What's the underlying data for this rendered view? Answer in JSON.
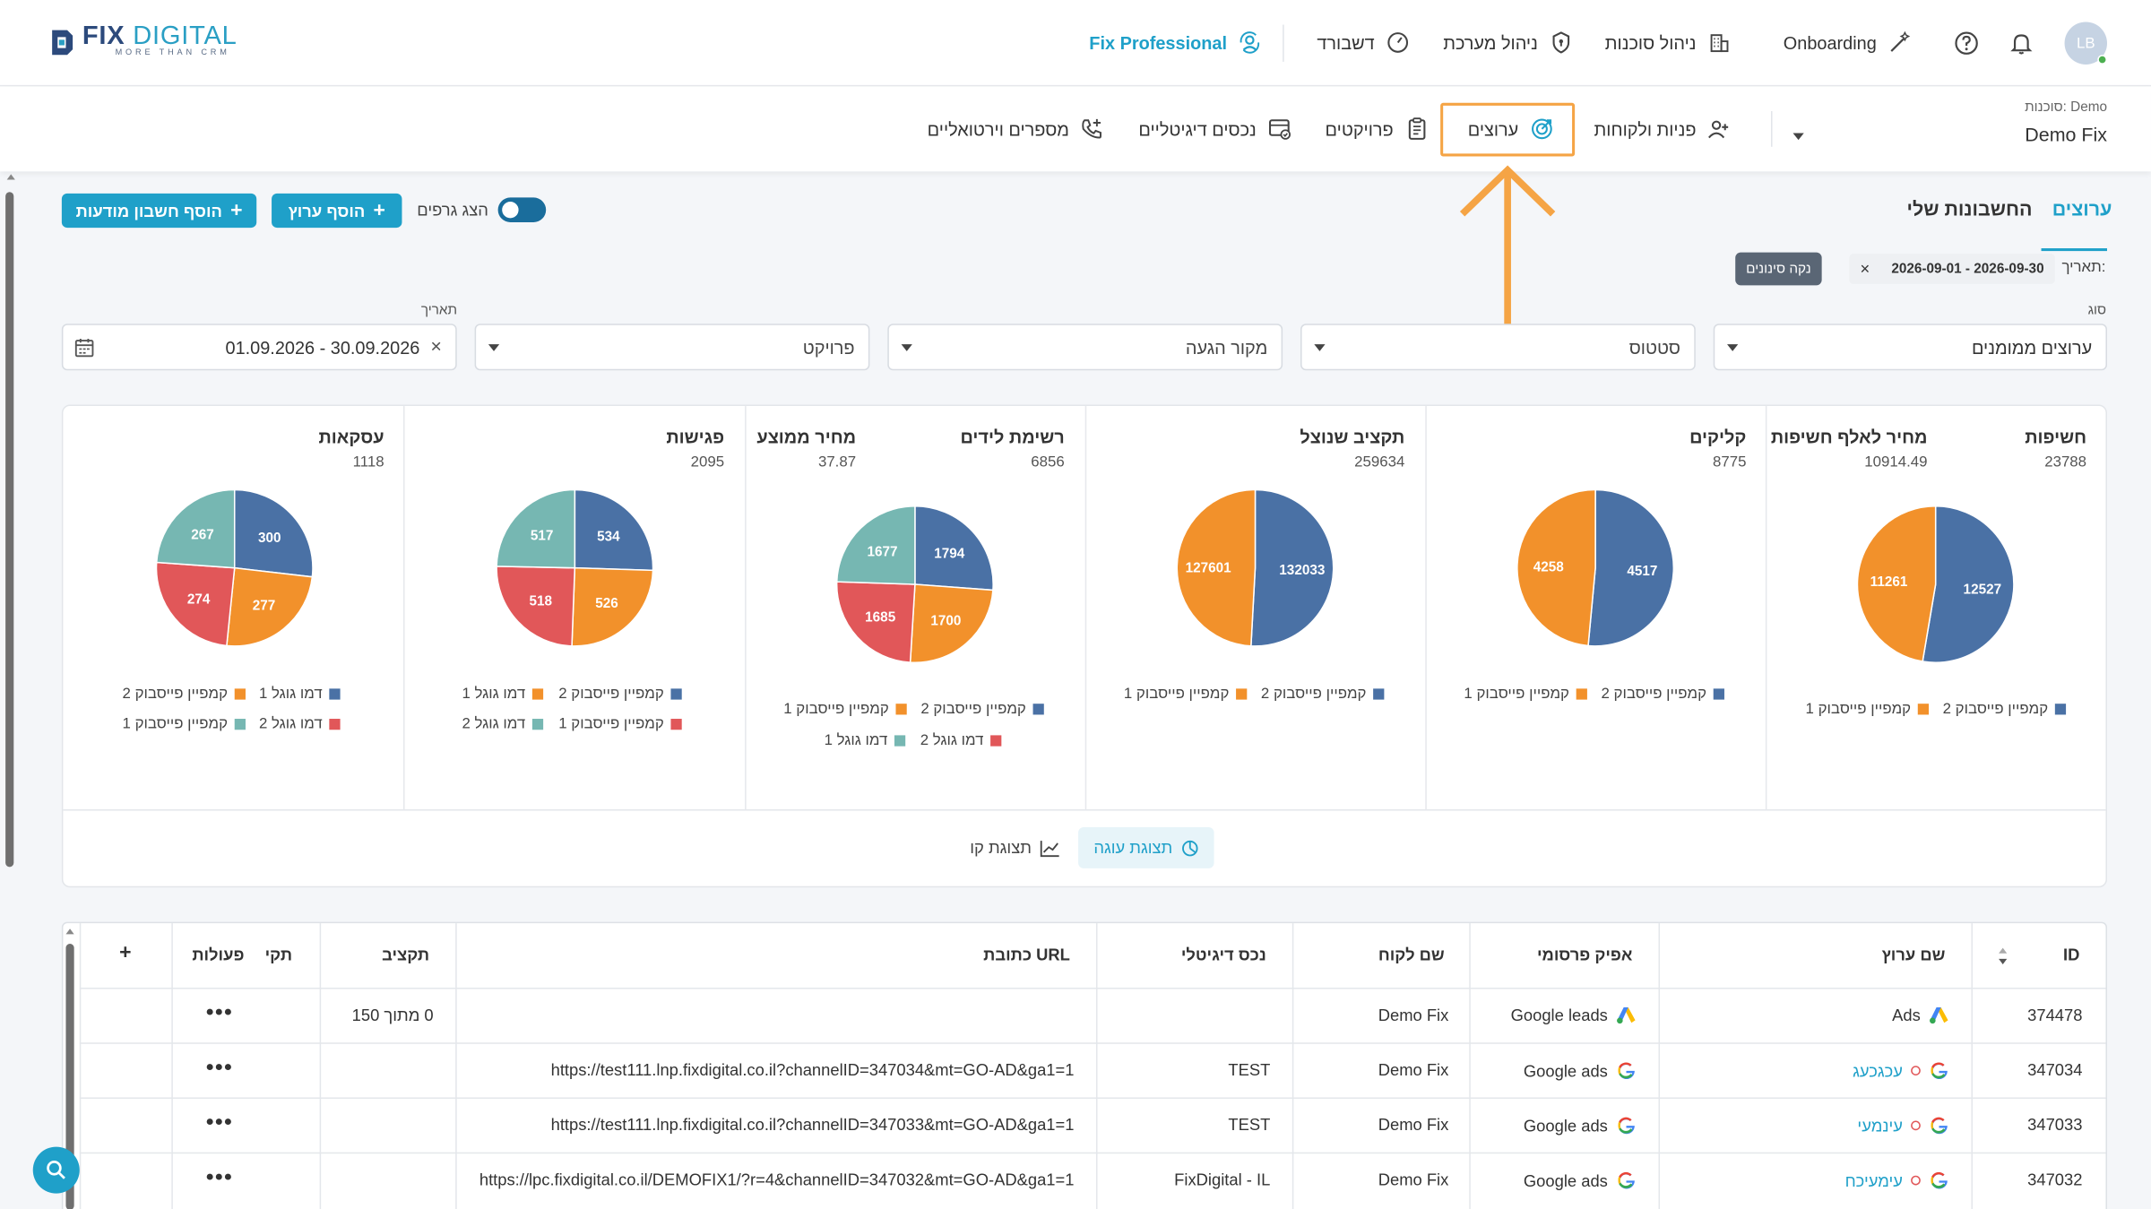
{
  "header": {
    "logo_name_1": "FIX",
    "logo_name_2": "DIGITAL",
    "logo_tagline": "MORE THAN CRM",
    "fix_professional": "Fix Professional",
    "dashboard": "דשבורד",
    "system_management": "ניהול מערכת",
    "agency_management": "ניהול סוכנות",
    "onboarding": "Onboarding",
    "avatar_initials": "LB"
  },
  "subnav": {
    "agency_label": "סוכנות: Demo",
    "agency_name": "Demo Fix",
    "items": [
      {
        "label": "פניות ולקוחות",
        "icon": "user-plus-icon"
      },
      {
        "label": "ערוצים",
        "icon": "target-icon"
      },
      {
        "label": "פרויקטים",
        "icon": "clipboard-icon"
      },
      {
        "label": "נכסים דיגיטליים",
        "icon": "digital-asset-icon"
      },
      {
        "label": "מספרים וירטואליים",
        "icon": "phone-plus-icon"
      }
    ]
  },
  "tabs": {
    "channels": "ערוצים",
    "my_accounts": "החשבונות שלי"
  },
  "actions": {
    "show_graphs": "הצג גרפים",
    "add_channel": "הוסף ערוץ",
    "add_ad_account": "הוסף חשבון מודעות"
  },
  "filters": {
    "date_prefix": "תאריך:",
    "date_chip": "2026-09-01 - 2026-09-30",
    "clear_filters": "נקה סינונים",
    "type_label": "סוג",
    "type_value": "ערוצים ממומנים",
    "status": "סטטוס",
    "source": "מקור הגעה",
    "project": "פרויקט",
    "date_label": "תאריך",
    "date_value": "01.09.2026 - 30.09.2026"
  },
  "colors": {
    "accent": "#1fa0c9",
    "series_blue": "#4a71a5",
    "series_orange": "#f2912b",
    "series_red": "#e15759",
    "series_teal": "#76b7b2",
    "highlight": "#f5a445"
  },
  "metrics": [
    {
      "title": "חשיפות",
      "value": "23788"
    },
    {
      "title": "מחיר לאלף חשיפות",
      "value": "10914.49"
    },
    {
      "title": "קליקים",
      "value": "8775"
    },
    {
      "title": "תקציב שנוצל",
      "value": "259634"
    },
    {
      "title": "רשימת לידים",
      "value": "6856"
    },
    {
      "title": "מחיר ממוצע",
      "value": "37.87"
    },
    {
      "title": "פגישות",
      "value": "2095"
    },
    {
      "title": "עסקאות",
      "value": "1118"
    }
  ],
  "chart_data": [
    {
      "type": "pie",
      "title": "חשיפות",
      "categories": [
        "קמפיין פייסבוק 2",
        "קמפיין פייסבוק 1"
      ],
      "values": [
        12527,
        11261
      ]
    },
    {
      "type": "pie",
      "title": "קליקים",
      "categories": [
        "קמפיין פייסבוק 2",
        "קמפיין פייסבוק 1"
      ],
      "values": [
        4517,
        4258
      ]
    },
    {
      "type": "pie",
      "title": "תקציב שנוצל",
      "categories": [
        "קמפיין פייסבוק 2",
        "קמפיין פייסבוק 1"
      ],
      "values": [
        132033,
        127601
      ]
    },
    {
      "type": "pie",
      "title": "רשימת לידים",
      "categories": [
        "קמפיין פייסבוק 2",
        "קמפיין פייסבוק 1",
        "דמו גוגל 2",
        "דמו גוגל 1"
      ],
      "values": [
        1794,
        1700,
        1685,
        1677
      ]
    },
    {
      "type": "pie",
      "title": "פגישות",
      "categories": [
        "קמפיין פייסבוק 2",
        "דמו גוגל 1",
        "קמפיין פייסבוק 1",
        "דמו גוגל 2"
      ],
      "values": [
        534,
        526,
        518,
        517
      ]
    },
    {
      "type": "pie",
      "title": "עסקאות",
      "categories": [
        "דמו גוגל 1",
        "קמפיין פייסבוק 2",
        "דמו גוגל 2",
        "קמפיין פייסבוק 1"
      ],
      "values": [
        300,
        277,
        274,
        267
      ]
    }
  ],
  "views": {
    "pie": "תצוגת עוגה",
    "line": "תצוגת קו"
  },
  "table": {
    "columns": {
      "id": "ID",
      "channel_name": "שם ערוץ",
      "ad_option": "אפיק פרסומי",
      "client_name": "שם לקוח",
      "digital_asset": "נכס דיגיטלי",
      "url": "כתובת URL",
      "budget": "תקציב",
      "budget2": "תקי",
      "actions": "פעולות",
      "add": "+"
    },
    "rows": [
      {
        "id": "374478",
        "name": "Ads",
        "name_icon": "google-ads-icon",
        "status_dot": false,
        "ad_option": "Google leads",
        "ad_icon": "google-ads-icon",
        "client": "Demo Fix",
        "asset": "",
        "url": "",
        "budget": "0 מתוך 150",
        "actions": "•••"
      },
      {
        "id": "347034",
        "name": "עכגכעג",
        "name_icon": "google-icon",
        "status_dot": true,
        "ad_option": "Google ads",
        "ad_icon": "google-icon",
        "client": "Demo Fix",
        "asset": "TEST",
        "url": "https://test111.lnp.fixdigital.co.il?channelID=347034&mt=GO-AD&ga1=1",
        "budget": "",
        "actions": "•••"
      },
      {
        "id": "347033",
        "name": "עינמעי",
        "name_icon": "google-icon",
        "status_dot": true,
        "ad_option": "Google ads",
        "ad_icon": "google-icon",
        "client": "Demo Fix",
        "asset": "TEST",
        "url": "https://test111.lnp.fixdigital.co.il?channelID=347033&mt=GO-AD&ga1=1",
        "budget": "",
        "actions": "•••"
      },
      {
        "id": "347032",
        "name": "עימעיכח",
        "name_icon": "google-icon",
        "status_dot": true,
        "ad_option": "Google ads",
        "ad_icon": "google-icon",
        "client": "Demo Fix",
        "asset": "FixDigital - IL",
        "url": "https://lpc.fixdigital.co.il/DEMOFIX1/?r=4&channelID=347032&mt=GO-AD&ga1=1",
        "budget": "",
        "actions": "•••"
      }
    ]
  }
}
